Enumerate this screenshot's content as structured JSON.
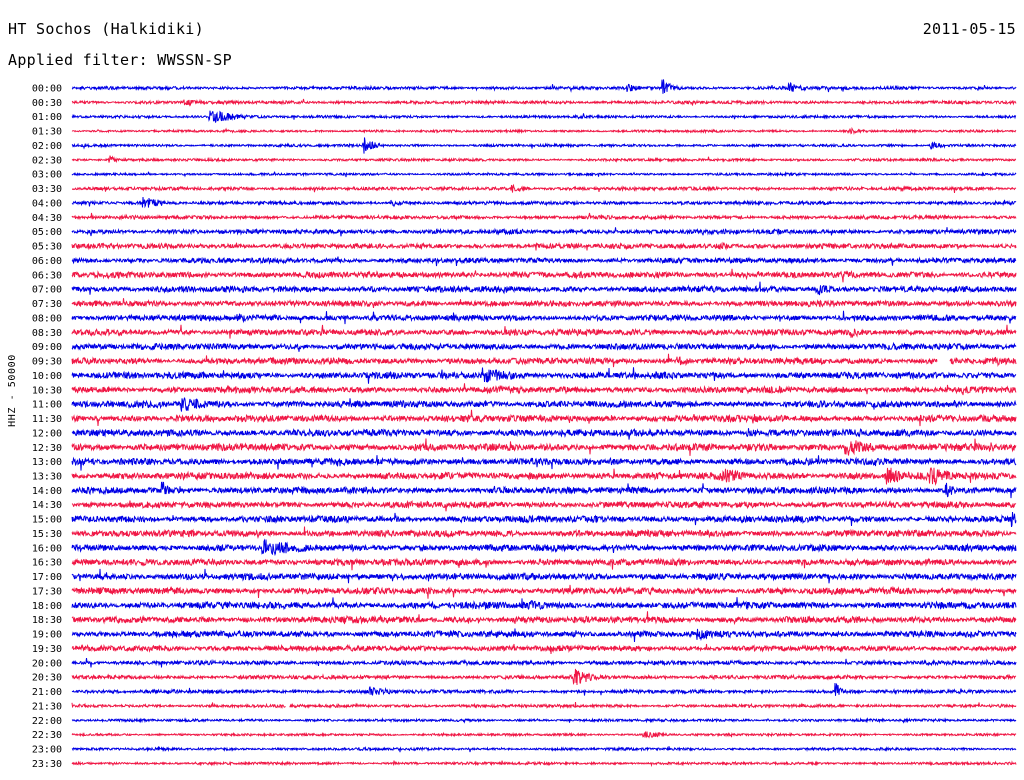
{
  "header": {
    "title": "HT Sochos (Halkidiki)",
    "date": "2011-05-15",
    "filter": "Applied filter: WWSSN-SP"
  },
  "colors": {
    "trace_a": "#0000e6",
    "trace_b": "#f01846",
    "background": "#ffffff",
    "text": "#000000"
  },
  "chart_data": {
    "type": "line",
    "title": "HT Sochos (Halkidiki)",
    "subtitle": "Applied filter: WWSSN-SP",
    "ylabel": "HHZ - 50000",
    "xlabel": "",
    "rows": [
      "00:00",
      "00:30",
      "01:00",
      "01:30",
      "02:00",
      "02:30",
      "03:00",
      "03:30",
      "04:00",
      "04:30",
      "05:00",
      "05:30",
      "06:00",
      "06:30",
      "07:00",
      "07:30",
      "08:00",
      "08:30",
      "09:00",
      "09:30",
      "10:00",
      "10:30",
      "11:00",
      "11:30",
      "12:00",
      "12:30",
      "13:00",
      "13:30",
      "14:00",
      "14:30",
      "15:00",
      "15:30",
      "16:00",
      "16:30",
      "17:00",
      "17:30",
      "18:00",
      "18:30",
      "19:00",
      "19:30",
      "20:00",
      "20:30",
      "21:00",
      "21:30",
      "22:00",
      "22:30",
      "23:00",
      "23:30"
    ],
    "row_duration_minutes": 30,
    "colors_alternate": [
      "#0000e6",
      "#f01846"
    ],
    "noise_level": [
      1.2,
      1.2,
      1.0,
      0.9,
      1.0,
      1.0,
      0.9,
      1.3,
      1.3,
      1.4,
      1.8,
      2.0,
      2.0,
      2.4,
      2.4,
      2.3,
      2.3,
      2.4,
      2.4,
      2.5,
      2.6,
      2.5,
      2.6,
      2.6,
      2.7,
      2.8,
      2.6,
      2.8,
      2.6,
      2.5,
      2.6,
      2.6,
      2.6,
      2.5,
      2.6,
      2.6,
      2.6,
      2.5,
      2.5,
      2.2,
      1.6,
      1.5,
      1.4,
      1.2,
      1.0,
      0.9,
      1.0,
      1.0
    ],
    "events": [
      {
        "row": "00:00",
        "minute": 17.7,
        "amplitude": 4,
        "duration_min": 0.5
      },
      {
        "row": "00:00",
        "minute": 18.8,
        "amplitude": 9,
        "duration_min": 0.3
      },
      {
        "row": "00:00",
        "minute": 22.8,
        "amplitude": 6,
        "duration_min": 0.4
      },
      {
        "row": "00:30",
        "minute": 3.6,
        "amplitude": 3,
        "duration_min": 1.0
      },
      {
        "row": "01:00",
        "minute": 4.4,
        "amplitude": 7,
        "duration_min": 0.9
      },
      {
        "row": "01:30",
        "minute": 24.7,
        "amplitude": 3,
        "duration_min": 0.6
      },
      {
        "row": "02:00",
        "minute": 9.3,
        "amplitude": 9,
        "duration_min": 0.3
      },
      {
        "row": "02:00",
        "minute": 27.3,
        "amplitude": 4,
        "duration_min": 0.5
      },
      {
        "row": "02:30",
        "minute": 1.2,
        "amplitude": 5,
        "duration_min": 0.2
      },
      {
        "row": "03:30",
        "minute": 14.0,
        "amplitude": 4,
        "duration_min": 0.5
      },
      {
        "row": "04:00",
        "minute": 2.3,
        "amplitude": 7,
        "duration_min": 0.6
      },
      {
        "row": "04:00",
        "minute": 10.2,
        "amplitude": 4,
        "duration_min": 0.4
      },
      {
        "row": "05:30",
        "minute": 14.8,
        "amplitude": 5,
        "duration_min": 0.3
      },
      {
        "row": "05:30",
        "minute": 20.5,
        "amplitude": 4,
        "duration_min": 0.8
      },
      {
        "row": "07:00",
        "minute": 13.7,
        "amplitude": 5,
        "duration_min": 0.5
      },
      {
        "row": "07:00",
        "minute": 23.7,
        "amplitude": 6,
        "duration_min": 0.6
      },
      {
        "row": "08:00",
        "minute": 5.3,
        "amplitude": 5,
        "duration_min": 0.5
      },
      {
        "row": "08:30",
        "minute": 24.8,
        "amplitude": 6,
        "duration_min": 0.5
      },
      {
        "row": "09:30",
        "minute": 19.2,
        "amplitude": 5,
        "duration_min": 0.8
      },
      {
        "row": "09:30",
        "minute": 29.4,
        "amplitude": 5,
        "duration_min": 0.4
      },
      {
        "row": "10:00",
        "minute": 13.1,
        "amplitude": 8,
        "duration_min": 1.2
      },
      {
        "row": "11:00",
        "minute": 3.5,
        "amplitude": 8,
        "duration_min": 1.0
      },
      {
        "row": "11:30",
        "minute": 21.7,
        "amplitude": 5,
        "duration_min": 0.6
      },
      {
        "row": "12:00",
        "minute": 21.5,
        "amplitude": 6,
        "duration_min": 0.4
      },
      {
        "row": "12:30",
        "minute": 24.6,
        "amplitude": 9,
        "duration_min": 1.2
      },
      {
        "row": "12:30",
        "minute": 29.2,
        "amplitude": 5,
        "duration_min": 0.5
      },
      {
        "row": "13:00",
        "minute": 8.5,
        "amplitude": 5,
        "duration_min": 0.3
      },
      {
        "row": "13:30",
        "minute": 20.7,
        "amplitude": 8,
        "duration_min": 0.8
      },
      {
        "row": "13:30",
        "minute": 25.9,
        "amplitude": 10,
        "duration_min": 0.7
      },
      {
        "row": "13:30",
        "minute": 27.3,
        "amplitude": 10,
        "duration_min": 0.7
      },
      {
        "row": "14:00",
        "minute": 2.9,
        "amplitude": 10,
        "duration_min": 0.2
      },
      {
        "row": "14:00",
        "minute": 27.8,
        "amplitude": 8,
        "duration_min": 0.3
      },
      {
        "row": "15:00",
        "minute": 29.9,
        "amplitude": 8,
        "duration_min": 0.4
      },
      {
        "row": "16:00",
        "minute": 6.1,
        "amplitude": 9,
        "duration_min": 1.4
      },
      {
        "row": "16:00",
        "minute": 11.1,
        "amplitude": 4,
        "duration_min": 0.5
      },
      {
        "row": "18:00",
        "minute": 14.3,
        "amplitude": 7,
        "duration_min": 1.0
      },
      {
        "row": "18:30",
        "minute": 8.7,
        "amplitude": 5,
        "duration_min": 1.2
      },
      {
        "row": "19:00",
        "minute": 19.9,
        "amplitude": 6,
        "duration_min": 0.7
      },
      {
        "row": "20:30",
        "minute": 16.0,
        "amplitude": 9,
        "duration_min": 0.6
      },
      {
        "row": "21:00",
        "minute": 9.5,
        "amplitude": 6,
        "duration_min": 0.6
      },
      {
        "row": "21:00",
        "minute": 24.3,
        "amplitude": 9,
        "duration_min": 0.2
      },
      {
        "row": "22:30",
        "minute": 18.2,
        "amplitude": 4,
        "duration_min": 0.6
      }
    ],
    "gaps": [
      {
        "row": "09:30",
        "minute": 27.5,
        "duration_min": 0.4
      },
      {
        "row": "21:30",
        "minute": 6.8,
        "duration_min": 0.1
      }
    ],
    "grid": false,
    "legend": "none"
  }
}
